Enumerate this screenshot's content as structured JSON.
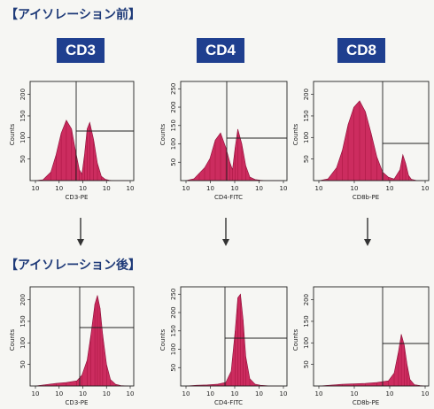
{
  "sections": {
    "before_title": "【アイソレーション前】",
    "after_title": "【アイソレーション後】"
  },
  "markers": [
    "CD3",
    "CD4",
    "CD8"
  ],
  "colors": {
    "histogram": "#c8164f",
    "badge": "#1f3f8f",
    "title": "#1e3a78"
  },
  "icons": {
    "down_arrow": "down-arrow-icon"
  },
  "chart_data": [
    {
      "type": "area",
      "stage": "before",
      "marker": "CD3",
      "xlabel": "CD3-PE",
      "ylabel": "Counts",
      "x_scale": "log",
      "xticks": [
        "10",
        "10",
        "10",
        "10",
        "10"
      ],
      "yticks": [
        "50",
        "100",
        "150",
        "200"
      ],
      "ylim": [
        0,
        230
      ],
      "xlim": [
        0,
        4
      ],
      "x": [
        0.2,
        0.5,
        0.8,
        1.0,
        1.2,
        1.4,
        1.6,
        1.75,
        1.9,
        2.0,
        2.1,
        2.2,
        2.3,
        2.45,
        2.6,
        2.75,
        2.9,
        3.05,
        3.2,
        3.4,
        3.6,
        3.8
      ],
      "values": [
        0,
        2,
        20,
        60,
        110,
        140,
        120,
        70,
        25,
        15,
        60,
        120,
        135,
        95,
        40,
        10,
        3,
        1,
        0,
        0,
        0,
        0
      ]
    },
    {
      "type": "area",
      "stage": "before",
      "marker": "CD4",
      "xlabel": "CD4-FITC",
      "ylabel": "Counts",
      "x_scale": "log",
      "xticks": [
        "10",
        "10",
        "10",
        "10",
        "10"
      ],
      "yticks": [
        "50",
        "100",
        "150",
        "200",
        "250"
      ],
      "ylim": [
        0,
        270
      ],
      "xlim": [
        0,
        4
      ],
      "x": [
        0.2,
        0.5,
        0.7,
        0.9,
        1.1,
        1.3,
        1.5,
        1.7,
        1.85,
        1.95,
        2.05,
        2.15,
        2.3,
        2.45,
        2.6,
        2.8,
        3.0,
        3.2,
        3.4,
        3.6,
        3.8
      ],
      "values": [
        0,
        5,
        20,
        35,
        60,
        110,
        130,
        90,
        50,
        30,
        90,
        140,
        100,
        40,
        10,
        3,
        1,
        0,
        0,
        0,
        0
      ]
    },
    {
      "type": "area",
      "stage": "before",
      "marker": "CD8",
      "xlabel": "CD8b-PE",
      "ylabel": "Counts",
      "x_scale": "log",
      "xticks": [
        "10",
        "10",
        "10",
        "10"
      ],
      "yticks": [
        "50",
        "100",
        "150",
        "200"
      ],
      "ylim": [
        0,
        230
      ],
      "xlim": [
        0,
        4
      ],
      "x": [
        0.2,
        0.5,
        0.8,
        1.0,
        1.2,
        1.4,
        1.6,
        1.8,
        2.0,
        2.2,
        2.4,
        2.6,
        2.8,
        3.0,
        3.1,
        3.2,
        3.3,
        3.4,
        3.6,
        3.8
      ],
      "values": [
        0,
        4,
        30,
        70,
        130,
        170,
        185,
        160,
        110,
        55,
        20,
        8,
        4,
        25,
        60,
        40,
        12,
        3,
        0,
        0
      ]
    },
    {
      "type": "area",
      "stage": "after",
      "marker": "CD3",
      "xlabel": "CD3-PE",
      "ylabel": "Counts",
      "x_scale": "log",
      "xticks": [
        "10",
        "10",
        "10",
        "10",
        "10"
      ],
      "yticks": [
        "50",
        "100",
        "150",
        "200"
      ],
      "ylim": [
        0,
        230
      ],
      "xlim": [
        0,
        4
      ],
      "x": [
        0.2,
        0.6,
        1.0,
        1.4,
        1.8,
        2.0,
        2.2,
        2.35,
        2.5,
        2.6,
        2.7,
        2.8,
        2.95,
        3.1,
        3.3,
        3.5,
        3.8
      ],
      "values": [
        0,
        3,
        6,
        8,
        12,
        25,
        60,
        120,
        190,
        210,
        180,
        120,
        50,
        15,
        4,
        1,
        0
      ]
    },
    {
      "type": "area",
      "stage": "after",
      "marker": "CD4",
      "xlabel": "CD4-FITC",
      "ylabel": "Counts",
      "x_scale": "log",
      "xticks": [
        "10",
        "10",
        "10",
        "10",
        "10"
      ],
      "yticks": [
        "50",
        "100",
        "150",
        "200",
        "250"
      ],
      "ylim": [
        0,
        270
      ],
      "xlim": [
        0,
        4
      ],
      "x": [
        0.2,
        0.6,
        1.0,
        1.4,
        1.7,
        1.9,
        2.05,
        2.15,
        2.25,
        2.35,
        2.45,
        2.6,
        2.8,
        3.0,
        3.4,
        3.8
      ],
      "values": [
        0,
        2,
        3,
        5,
        10,
        40,
        150,
        240,
        250,
        180,
        80,
        20,
        5,
        2,
        0,
        0
      ]
    },
    {
      "type": "area",
      "stage": "after",
      "marker": "CD8",
      "xlabel": "CD8b-PE",
      "ylabel": "Counts",
      "x_scale": "log",
      "xticks": [
        "10",
        "10",
        "10",
        "10"
      ],
      "yticks": [
        "50",
        "100",
        "150",
        "200"
      ],
      "ylim": [
        0,
        230
      ],
      "xlim": [
        0,
        4
      ],
      "x": [
        0.2,
        0.6,
        1.0,
        1.4,
        1.8,
        2.2,
        2.6,
        2.8,
        2.95,
        3.05,
        3.15,
        3.25,
        3.35,
        3.5,
        3.7,
        3.9
      ],
      "values": [
        0,
        2,
        4,
        5,
        6,
        8,
        12,
        30,
        80,
        120,
        95,
        50,
        15,
        3,
        1,
        0
      ]
    }
  ]
}
